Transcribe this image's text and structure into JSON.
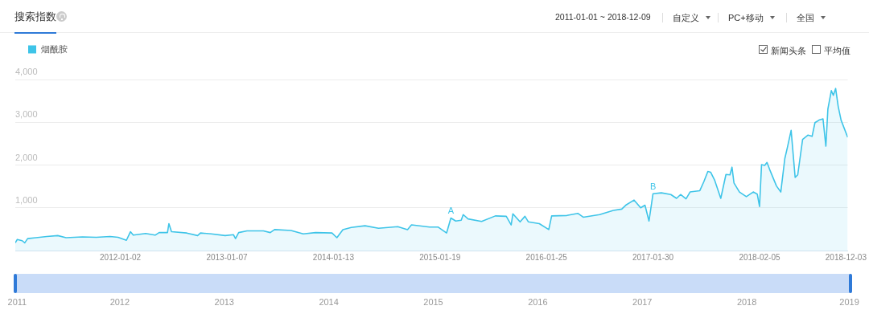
{
  "chart_data": {
    "type": "area",
    "title": "搜索指数",
    "legend": "top left",
    "grid": "y",
    "marker": "none",
    "line_style": "solid",
    "xlim": [
      "2011-01-01",
      "2018-12-09"
    ],
    "xticks": [
      {
        "value": "2012-01-02",
        "label": "2012-01-02"
      },
      {
        "value": "2013-01-07",
        "label": "2013-01-07"
      },
      {
        "value": "2014-01-13",
        "label": "2014-01-13"
      },
      {
        "value": "2015-01-19",
        "label": "2015-01-19"
      },
      {
        "value": "2016-01-25",
        "label": "2016-01-25"
      },
      {
        "value": "2017-01-30",
        "label": "2017-01-30"
      },
      {
        "value": "2018-02-05",
        "label": "2018-02-05"
      },
      {
        "value": "2018-12-03",
        "label": "2018-12-03"
      }
    ],
    "ylim": [
      0,
      4000
    ],
    "yticks": [
      {
        "value": 0,
        "label": null
      },
      {
        "value": 1000,
        "label": "1,000"
      },
      {
        "value": 2000,
        "label": "2,000"
      },
      {
        "value": 3000,
        "label": "3,000"
      },
      {
        "value": 4000,
        "label": "4,000"
      }
    ],
    "annotations": [
      "2011-01-01 ~ 2018-12-09",
      "自定义",
      "PC+移动",
      "全国",
      "新闻头条",
      "平均值",
      {
        "text": "A",
        "x": "2015-02-26",
        "y": 760
      },
      {
        "text": "B",
        "x": "2017-01-30",
        "y": 1330
      },
      "2011",
      "2012",
      "2013",
      "2014",
      "2015",
      "2016",
      "2017",
      "2018",
      "2019"
    ],
    "x": [
      "2011-01-01",
      "2011-01-08",
      "2011-01-25",
      "2011-02-03",
      "2011-02-13",
      "2011-03-14",
      "2011-04-21",
      "2011-05-29",
      "2011-06-27",
      "2011-08-23",
      "2011-10-10",
      "2011-11-27",
      "2011-12-25",
      "2012-01-23",
      "2012-02-06",
      "2012-02-16",
      "2012-03-30",
      "2012-05-02",
      "2012-05-16",
      "2012-06-14",
      "2012-06-19",
      "2012-06-28",
      "2012-08-20",
      "2012-09-27",
      "2012-10-07",
      "2012-11-14",
      "2013-01-01",
      "2013-01-30",
      "2013-02-06",
      "2013-02-17",
      "2013-03-18",
      "2013-05-14",
      "2013-06-07",
      "2013-06-22",
      "2013-08-18",
      "2013-09-30",
      "2013-11-12",
      "2014-01-08",
      "2014-01-25",
      "2014-02-15",
      "2014-03-16",
      "2014-05-03",
      "2014-06-19",
      "2014-08-25",
      "2014-09-28",
      "2014-10-12",
      "2014-12-14",
      "2015-01-12",
      "2015-02-11",
      "2015-02-26",
      "2015-03-15",
      "2015-04-03",
      "2015-04-10",
      "2015-04-27",
      "2015-06-13",
      "2015-07-31",
      "2015-09-07",
      "2015-09-24",
      "2015-09-30",
      "2015-10-25",
      "2015-11-11",
      "2015-11-23",
      "2015-12-31",
      "2016-02-02",
      "2016-02-12",
      "2016-04-05",
      "2016-05-13",
      "2016-06-01",
      "2016-07-28",
      "2016-09-14",
      "2016-10-13",
      "2016-10-27",
      "2016-11-25",
      "2016-12-18",
      "2017-01-02",
      "2017-01-16",
      "2017-01-30",
      "2017-02-28",
      "2017-04-02",
      "2017-04-22",
      "2017-05-06",
      "2017-05-25",
      "2017-06-08",
      "2017-07-12",
      "2017-07-26",
      "2017-08-09",
      "2017-08-19",
      "2017-09-02",
      "2017-09-23",
      "2017-10-11",
      "2017-10-25",
      "2017-11-01",
      "2017-11-08",
      "2017-11-27",
      "2017-12-21",
      "2018-01-14",
      "2018-01-28",
      "2018-02-05",
      "2018-02-12",
      "2018-02-23",
      "2018-03-03",
      "2018-03-12",
      "2018-04-05",
      "2018-04-20",
      "2018-05-04",
      "2018-05-13",
      "2018-05-26",
      "2018-06-09",
      "2018-06-18",
      "2018-07-05",
      "2018-07-24",
      "2018-08-07",
      "2018-08-17",
      "2018-08-31",
      "2018-09-14",
      "2018-09-24",
      "2018-10-01",
      "2018-10-13",
      "2018-10-20",
      "2018-10-28",
      "2018-11-06",
      "2018-11-16",
      "2018-12-09"
    ],
    "series": [
      {
        "name": "烟酰胺",
        "color": "#3ec4e8",
        "values": [
          180,
          260,
          230,
          180,
          280,
          300,
          330,
          350,
          300,
          320,
          310,
          330,
          310,
          240,
          440,
          360,
          400,
          360,
          420,
          420,
          630,
          440,
          410,
          350,
          410,
          390,
          350,
          370,
          280,
          420,
          460,
          460,
          420,
          490,
          470,
          390,
          420,
          410,
          300,
          490,
          540,
          580,
          520,
          560,
          490,
          600,
          550,
          550,
          410,
          760,
          690,
          710,
          840,
          740,
          680,
          810,
          800,
          600,
          860,
          670,
          800,
          670,
          630,
          490,
          810,
          820,
          870,
          780,
          840,
          940,
          970,
          1060,
          1180,
          1000,
          1060,
          690,
          1330,
          1350,
          1310,
          1220,
          1310,
          1210,
          1370,
          1400,
          1610,
          1850,
          1830,
          1640,
          1220,
          1780,
          1770,
          1950,
          1580,
          1370,
          1260,
          1370,
          1320,
          1030,
          2010,
          1990,
          2060,
          1900,
          1510,
          1370,
          2150,
          2410,
          2810,
          1710,
          1770,
          2600,
          2700,
          2670,
          2990,
          3050,
          3080,
          2440,
          3310,
          3740,
          3630,
          3790,
          3370,
          3050,
          2650
        ]
      }
    ]
  }
}
